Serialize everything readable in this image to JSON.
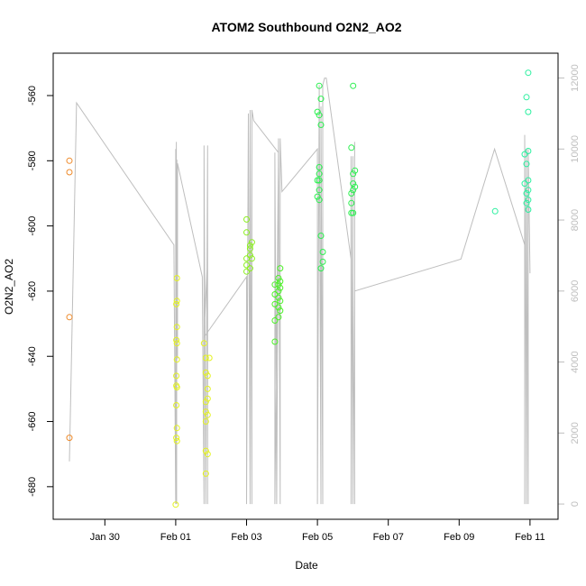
{
  "chart_data": {
    "type": "scatter",
    "title": "ATOM2 Southbound O2N2_AO2",
    "xlabel": "Date",
    "ylabel": "O2N2_AO2",
    "x_ticks": [
      "Jan 30",
      "Feb 01",
      "Feb 03",
      "Feb 05",
      "Feb 07",
      "Feb 09",
      "Feb 11"
    ],
    "y_ticks": [
      "-560",
      "-580",
      "-600",
      "-620",
      "-640",
      "-660",
      "-680"
    ],
    "y2_ticks": [
      "0",
      "2000",
      "4000",
      "6000",
      "8000",
      "10000",
      "12000"
    ],
    "xlim": [
      "Jan 28 13:00",
      "Feb 11 19:00"
    ],
    "ylim": [
      -690,
      -547
    ],
    "y2lim": [
      -430,
      12700
    ],
    "grid": false,
    "colors": {
      "axis": "#000000",
      "secondary_axis": "#bebebe",
      "altitude_line": "#bebebe"
    },
    "series": [
      {
        "color": "#ee8a2a",
        "points": [
          {
            "x": "Jan 29 00:00",
            "y": -580
          },
          {
            "x": "Jan 29 00:00",
            "y": -583.5
          },
          {
            "x": "Jan 29 00:00",
            "y": -628
          },
          {
            "x": "Jan 29 00:00",
            "y": -665
          }
        ]
      },
      {
        "color": "#e4f220",
        "points": [
          {
            "x": "Feb 01 00:00",
            "y": -685.5
          },
          {
            "x": "Feb 01 00:48",
            "y": -616
          },
          {
            "x": "Feb 01 00:48",
            "y": -623
          },
          {
            "x": "Feb 01 00:48",
            "y": -631
          },
          {
            "x": "Feb 01 00:48",
            "y": -636
          },
          {
            "x": "Feb 01 00:48",
            "y": -641
          },
          {
            "x": "Feb 01 00:48",
            "y": -649.5
          },
          {
            "x": "Feb 01 00:48",
            "y": -662
          },
          {
            "x": "Feb 01 00:48",
            "y": -666
          },
          {
            "x": "Feb 01 00:24",
            "y": -646
          },
          {
            "x": "Feb 01 00:24",
            "y": -649
          },
          {
            "x": "Feb 01 00:24",
            "y": -655
          },
          {
            "x": "Feb 01 00:24",
            "y": -665
          },
          {
            "x": "Feb 01 00:24",
            "y": -624
          },
          {
            "x": "Feb 01 00:24",
            "y": -635
          },
          {
            "x": "Feb 01 19:12",
            "y": -636
          },
          {
            "x": "Feb 01 20:24",
            "y": -640.5
          },
          {
            "x": "Feb 01 20:24",
            "y": -645
          },
          {
            "x": "Feb 01 20:24",
            "y": -654
          },
          {
            "x": "Feb 01 20:24",
            "y": -657
          },
          {
            "x": "Feb 01 20:24",
            "y": -660
          },
          {
            "x": "Feb 01 20:24",
            "y": -669
          },
          {
            "x": "Feb 01 20:24",
            "y": -676
          },
          {
            "x": "Feb 01 21:36",
            "y": -646
          },
          {
            "x": "Feb 01 21:36",
            "y": -650
          },
          {
            "x": "Feb 01 21:36",
            "y": -653
          },
          {
            "x": "Feb 01 21:36",
            "y": -658
          },
          {
            "x": "Feb 01 21:36",
            "y": -670
          },
          {
            "x": "Feb 01 22:48",
            "y": -640.5
          }
        ]
      },
      {
        "color": "#8cf020",
        "points": [
          {
            "x": "Feb 03 00:00",
            "y": -598
          },
          {
            "x": "Feb 03 00:00",
            "y": -602
          },
          {
            "x": "Feb 03 00:00",
            "y": -610
          },
          {
            "x": "Feb 03 00:00",
            "y": -612
          },
          {
            "x": "Feb 03 00:00",
            "y": -614
          },
          {
            "x": "Feb 03 02:24",
            "y": -606
          },
          {
            "x": "Feb 03 02:24",
            "y": -607
          },
          {
            "x": "Feb 03 02:24",
            "y": -609
          },
          {
            "x": "Feb 03 02:24",
            "y": -613
          },
          {
            "x": "Feb 03 03:36",
            "y": -610
          },
          {
            "x": "Feb 03 03:36",
            "y": -605
          }
        ]
      },
      {
        "color": "#4cf028",
        "points": [
          {
            "x": "Feb 03 19:12",
            "y": -618
          },
          {
            "x": "Feb 03 19:12",
            "y": -621
          },
          {
            "x": "Feb 03 19:12",
            "y": -624
          },
          {
            "x": "Feb 03 19:12",
            "y": -629
          },
          {
            "x": "Feb 03 19:12",
            "y": -635.5
          },
          {
            "x": "Feb 03 21:36",
            "y": -616
          },
          {
            "x": "Feb 03 21:36",
            "y": -618
          },
          {
            "x": "Feb 03 21:36",
            "y": -620
          },
          {
            "x": "Feb 03 21:36",
            "y": -622
          },
          {
            "x": "Feb 03 21:36",
            "y": -625
          },
          {
            "x": "Feb 03 21:36",
            "y": -628
          },
          {
            "x": "Feb 03 22:48",
            "y": -613
          },
          {
            "x": "Feb 03 22:48",
            "y": -617
          },
          {
            "x": "Feb 03 22:48",
            "y": -619
          },
          {
            "x": "Feb 03 22:48",
            "y": -623
          },
          {
            "x": "Feb 03 22:48",
            "y": -626
          }
        ]
      },
      {
        "color": "#2cf050",
        "points": [
          {
            "x": "Feb 05 00:00",
            "y": -565
          },
          {
            "x": "Feb 05 00:00",
            "y": -586
          },
          {
            "x": "Feb 05 00:00",
            "y": -591
          },
          {
            "x": "Feb 05 01:12",
            "y": -557
          },
          {
            "x": "Feb 05 01:12",
            "y": -566
          },
          {
            "x": "Feb 05 01:12",
            "y": -582
          },
          {
            "x": "Feb 05 01:12",
            "y": -584
          },
          {
            "x": "Feb 05 01:12",
            "y": -586
          },
          {
            "x": "Feb 05 01:12",
            "y": -589
          },
          {
            "x": "Feb 05 01:12",
            "y": -592
          },
          {
            "x": "Feb 05 02:24",
            "y": -561
          },
          {
            "x": "Feb 05 02:24",
            "y": -569
          },
          {
            "x": "Feb 05 02:24",
            "y": -603
          },
          {
            "x": "Feb 05 02:24",
            "y": -613
          },
          {
            "x": "Feb 05 03:36",
            "y": -608
          },
          {
            "x": "Feb 05 03:36",
            "y": -611
          },
          {
            "x": "Feb 05 23:00",
            "y": -576
          },
          {
            "x": "Feb 05 23:00",
            "y": -590
          },
          {
            "x": "Feb 05 23:00",
            "y": -593
          },
          {
            "x": "Feb 05 23:00",
            "y": -596
          },
          {
            "x": "Feb 06 00:12",
            "y": -557
          },
          {
            "x": "Feb 06 00:12",
            "y": -584
          },
          {
            "x": "Feb 06 00:12",
            "y": -587
          },
          {
            "x": "Feb 06 00:12",
            "y": -589
          },
          {
            "x": "Feb 06 00:12",
            "y": -596
          },
          {
            "x": "Feb 06 01:24",
            "y": -583
          },
          {
            "x": "Feb 06 01:24",
            "y": -588
          }
        ]
      },
      {
        "color": "#2cf0a0",
        "points": [
          {
            "x": "Feb 10 00:24",
            "y": -595.5
          },
          {
            "x": "Feb 10 20:24",
            "y": -578
          },
          {
            "x": "Feb 10 20:24",
            "y": -587
          },
          {
            "x": "Feb 10 21:36",
            "y": -560.5
          },
          {
            "x": "Feb 10 21:36",
            "y": -581
          },
          {
            "x": "Feb 10 21:36",
            "y": -590
          },
          {
            "x": "Feb 10 21:36",
            "y": -593
          },
          {
            "x": "Feb 10 22:48",
            "y": -553
          },
          {
            "x": "Feb 10 22:48",
            "y": -565
          },
          {
            "x": "Feb 10 22:48",
            "y": -577
          },
          {
            "x": "Feb 10 22:48",
            "y": -586
          },
          {
            "x": "Feb 10 22:48",
            "y": -589
          },
          {
            "x": "Feb 10 22:48",
            "y": -592
          },
          {
            "x": "Feb 10 22:48",
            "y": -595
          }
        ]
      }
    ],
    "altitude_line": [
      {
        "x": "Jan 29 00:00",
        "y": 1200
      },
      {
        "x": "Jan 29 04:48",
        "y": 11300
      },
      {
        "x": "Jan 31 22:48",
        "y": 7300
      },
      {
        "x": "Feb 01 00:00",
        "y": 0
      },
      {
        "x": "Feb 01 00:00",
        "y": 10000
      },
      {
        "x": "Feb 01 00:12",
        "y": 0
      },
      {
        "x": "Feb 01 00:24",
        "y": 10200
      },
      {
        "x": "Feb 01 00:36",
        "y": 0
      },
      {
        "x": "Feb 01 00:48",
        "y": 9700
      },
      {
        "x": "Feb 01 01:12",
        "y": 4100
      },
      {
        "x": "Feb 01 01:12",
        "y": 9600
      },
      {
        "x": "Feb 01 18:00",
        "y": 6400
      },
      {
        "x": "Feb 01 19:12",
        "y": 0
      },
      {
        "x": "Feb 01 19:12",
        "y": 10100
      },
      {
        "x": "Feb 01 20:24",
        "y": 0
      },
      {
        "x": "Feb 01 21:36",
        "y": 10100
      },
      {
        "x": "Feb 01 21:36",
        "y": 0
      },
      {
        "x": "Feb 01 21:36",
        "y": 7000
      },
      {
        "x": "Feb 01 19:12",
        "y": 4700
      },
      {
        "x": "Feb 03 00:00",
        "y": 6400
      },
      {
        "x": "Feb 03 00:00",
        "y": 0
      },
      {
        "x": "Feb 03 01:12",
        "y": 11000
      },
      {
        "x": "Feb 03 02:24",
        "y": 0
      },
      {
        "x": "Feb 03 02:24",
        "y": 11100
      },
      {
        "x": "Feb 03 03:36",
        "y": 0
      },
      {
        "x": "Feb 03 03:36",
        "y": 11100
      },
      {
        "x": "Feb 03 04:48",
        "y": 10800
      },
      {
        "x": "Feb 03 21:36",
        "y": 9900
      },
      {
        "x": "Feb 03 19:12",
        "y": 0
      },
      {
        "x": "Feb 03 19:12",
        "y": 9900
      },
      {
        "x": "Feb 03 20:24",
        "y": 0
      },
      {
        "x": "Feb 03 21:36",
        "y": 10300
      },
      {
        "x": "Feb 03 22:48",
        "y": 0
      },
      {
        "x": "Feb 03 22:48",
        "y": 10300
      },
      {
        "x": "Feb 04 00:00",
        "y": 8800
      },
      {
        "x": "Feb 05 00:00",
        "y": 10000
      },
      {
        "x": "Feb 05 00:00",
        "y": 0
      },
      {
        "x": "Feb 05 01:12",
        "y": 11800
      },
      {
        "x": "Feb 05 02:24",
        "y": 0
      },
      {
        "x": "Feb 05 02:24",
        "y": 11200
      },
      {
        "x": "Feb 05 03:36",
        "y": 0
      },
      {
        "x": "Feb 05 03:36",
        "y": 11800
      },
      {
        "x": "Feb 05 04:48",
        "y": 12000
      },
      {
        "x": "Feb 05 06:00",
        "y": 12000
      },
      {
        "x": "Feb 05 22:48",
        "y": 6900
      },
      {
        "x": "Feb 05 22:48",
        "y": 0
      },
      {
        "x": "Feb 05 22:48",
        "y": 9800
      },
      {
        "x": "Feb 06 00:00",
        "y": 0
      },
      {
        "x": "Feb 06 00:00",
        "y": 9800
      },
      {
        "x": "Feb 06 00:00",
        "y": 6500
      },
      {
        "x": "Feb 06 01:12",
        "y": 0
      },
      {
        "x": "Feb 06 01:12",
        "y": 10200
      },
      {
        "x": "Feb 06 01:12",
        "y": 6000
      },
      {
        "x": "Feb 09 01:12",
        "y": 6900
      },
      {
        "x": "Feb 10 00:00",
        "y": 10000
      },
      {
        "x": "Feb 10 20:24",
        "y": 7300
      },
      {
        "x": "Feb 10 20:24",
        "y": 0
      },
      {
        "x": "Feb 10 20:24",
        "y": 10400
      },
      {
        "x": "Feb 10 21:36",
        "y": 0
      },
      {
        "x": "Feb 10 21:36",
        "y": 10000
      },
      {
        "x": "Feb 10 22:48",
        "y": 0
      },
      {
        "x": "Feb 10 22:48",
        "y": 10000
      },
      {
        "x": "Feb 11 00:00",
        "y": 6500
      }
    ]
  }
}
